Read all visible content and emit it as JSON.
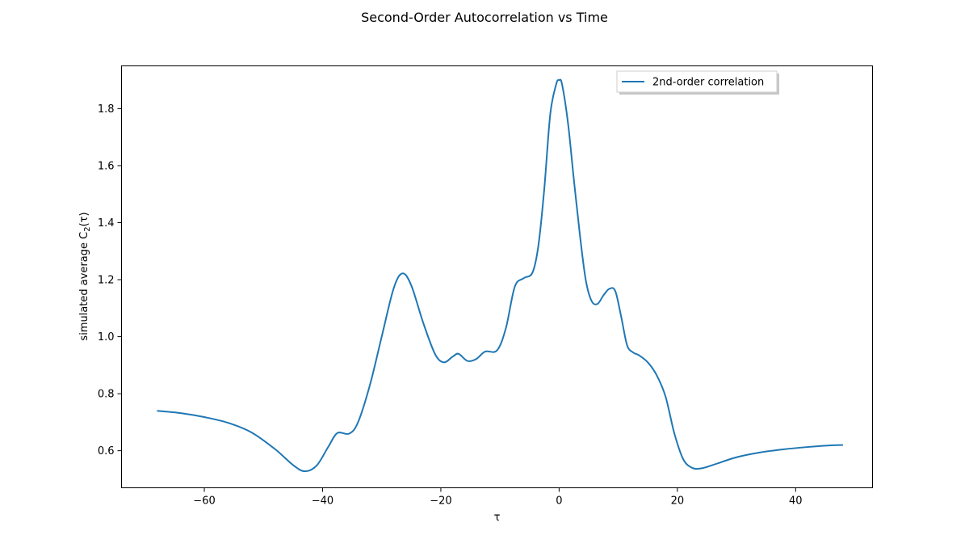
{
  "chart_data": {
    "type": "line",
    "title": "Second-Order Autocorrelation vs Time",
    "xlabel": "τ",
    "ylabel": "simulated average C",
    "ylabel_sub": "2",
    "ylabel_suffix": "(τ)",
    "xlim": [
      -74,
      53
    ],
    "ylim": [
      0.47,
      1.95
    ],
    "xticks": [
      -60,
      -40,
      -20,
      0,
      20,
      40
    ],
    "yticks": [
      0.6,
      0.8,
      1.0,
      1.2,
      1.4,
      1.6,
      1.8
    ],
    "xtick_labels": [
      "−60",
      "−40",
      "−20",
      "0",
      "20",
      "40"
    ],
    "ytick_labels": [
      "0.6",
      "0.8",
      "1.0",
      "1.2",
      "1.4",
      "1.6",
      "1.8"
    ],
    "grid": false,
    "legend_position": "upper right",
    "line_color": "#1f77b4",
    "series": [
      {
        "name": "2nd-order correlation",
        "x": [
          -68,
          -64,
          -60,
          -56,
          -52,
          -48,
          -45,
          -43,
          -41,
          -39,
          -37.5,
          -35.5,
          -34,
          -32,
          -30,
          -28,
          -26.5,
          -25,
          -23,
          -21,
          -19.5,
          -18,
          -17,
          -15.5,
          -14,
          -12.5,
          -10.5,
          -9,
          -7.5,
          -6,
          -4.5,
          -3.5,
          -2.5,
          -1.5,
          -0.5,
          0,
          0.5,
          1.5,
          2.5,
          3.5,
          4.5,
          5.5,
          6.5,
          7.5,
          8.5,
          9.5,
          10.5,
          11.5,
          12.5,
          13.5,
          15,
          16.5,
          18,
          19.5,
          21,
          22.5,
          24,
          26,
          30,
          34,
          38,
          42,
          46,
          48
        ],
        "y": [
          0.74,
          0.732,
          0.718,
          0.698,
          0.664,
          0.605,
          0.55,
          0.528,
          0.548,
          0.615,
          0.662,
          0.66,
          0.7,
          0.83,
          1.0,
          1.168,
          1.222,
          1.18,
          1.05,
          0.94,
          0.91,
          0.93,
          0.94,
          0.915,
          0.922,
          0.948,
          0.952,
          1.03,
          1.175,
          1.205,
          1.225,
          1.32,
          1.52,
          1.78,
          1.885,
          1.9,
          1.885,
          1.75,
          1.55,
          1.36,
          1.2,
          1.125,
          1.115,
          1.145,
          1.168,
          1.16,
          1.07,
          0.97,
          0.945,
          0.935,
          0.91,
          0.865,
          0.79,
          0.66,
          0.57,
          0.54,
          0.538,
          0.55,
          0.577,
          0.594,
          0.605,
          0.613,
          0.619,
          0.62
        ]
      }
    ]
  }
}
